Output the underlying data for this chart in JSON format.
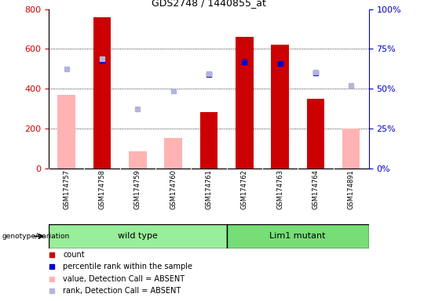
{
  "title": "GDS2748 / 1440855_at",
  "samples": [
    "GSM174757",
    "GSM174758",
    "GSM174759",
    "GSM174760",
    "GSM174761",
    "GSM174762",
    "GSM174763",
    "GSM174764",
    "GSM174891"
  ],
  "count": [
    null,
    760,
    null,
    null,
    285,
    660,
    620,
    350,
    null
  ],
  "percentile_rank": [
    null,
    68,
    null,
    null,
    59,
    67,
    66,
    60,
    null
  ],
  "value_absent": [
    370,
    null,
    88,
    155,
    null,
    null,
    null,
    null,
    200
  ],
  "rank_absent_left": [
    500,
    550,
    300,
    390,
    475,
    null,
    null,
    485,
    415
  ],
  "wild_type_count": 5,
  "lim1_mutant_count": 4,
  "ylim_left": [
    0,
    800
  ],
  "ylim_right": [
    0,
    100
  ],
  "yticks_left": [
    0,
    200,
    400,
    600,
    800
  ],
  "yticks_right": [
    0,
    25,
    50,
    75,
    100
  ],
  "bar_color_count": "#cc0000",
  "bar_color_absent": "#ffb3b3",
  "dot_color_rank": "#0000cc",
  "dot_color_rank_absent": "#b3b3dd",
  "wt_color": "#99ee99",
  "mut_color": "#77dd77",
  "left_axis_color": "#cc0000",
  "right_axis_color": "#0000cc",
  "tick_label_bg": "#cccccc",
  "bar_width": 0.5,
  "dot_size": 5
}
